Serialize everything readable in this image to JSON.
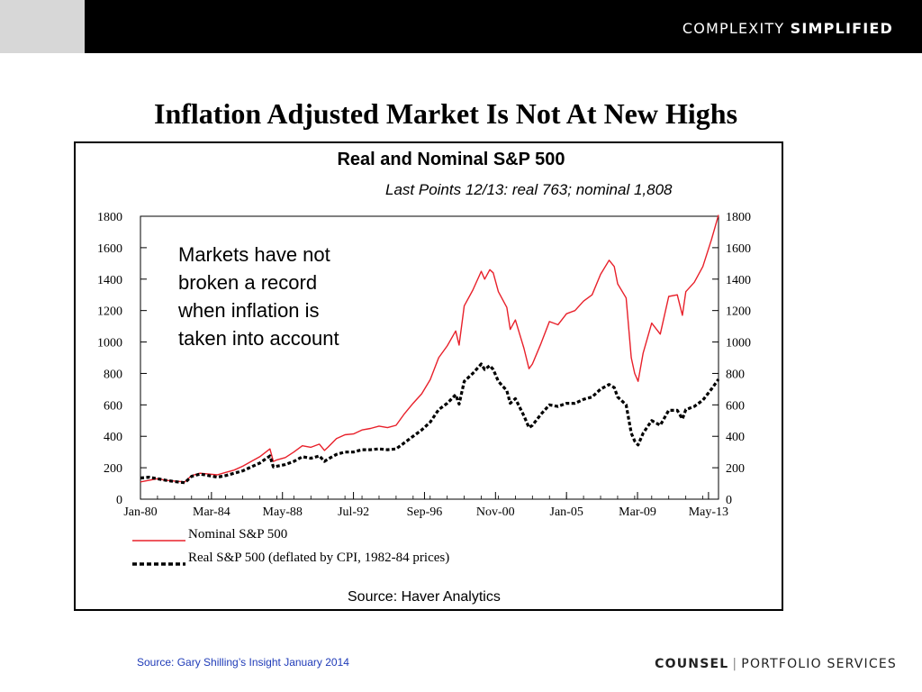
{
  "header": {
    "brand_light": "COMPLEXITY",
    "brand_bold": "SIMPLIFIED"
  },
  "slide_title": "Inflation Adjusted Market Is Not At New Highs",
  "callout": [
    "Markets have not",
    "broken a record",
    "when inflation is",
    "taken into account"
  ],
  "footer": {
    "source": "Source: Gary Shilling’s Insight January 2014",
    "brand_bold": "COUNSEL",
    "brand_separator": "|",
    "brand_light": "PORTFOLIO SERVICES"
  },
  "chart_data": {
    "type": "line",
    "title": "Real and Nominal S&P 500",
    "subtitle": "Last Points 12/13:  real  763;  nominal  1,808",
    "source": "Source:  Haver  Analytics",
    "ylim": [
      0,
      1800
    ],
    "grid": false,
    "legend_position": "bottom",
    "y_ticks": [
      "0",
      "200",
      "400",
      "600",
      "800",
      "1000",
      "1200",
      "1400",
      "1600",
      "1800"
    ],
    "x_ticks": [
      "Jan-80",
      "Mar-84",
      "May-88",
      "Jul-92",
      "Sep-96",
      "Nov-00",
      "Jan-05",
      "Mar-09",
      "May-13"
    ],
    "colors": {
      "nominal": "#e8202a",
      "real": "#000000"
    },
    "series": [
      {
        "name": "Nominal S&P 500",
        "style": "solid",
        "x": [
          1980.0,
          1980.5,
          1981.0,
          1981.5,
          1982.0,
          1982.6,
          1983.0,
          1983.5,
          1984.0,
          1984.5,
          1985.0,
          1985.5,
          1986.0,
          1986.5,
          1987.0,
          1987.6,
          1987.8,
          1988.0,
          1988.5,
          1989.0,
          1989.5,
          1990.0,
          1990.5,
          1990.8,
          1991.0,
          1991.5,
          1992.0,
          1992.5,
          1993.0,
          1993.5,
          1994.0,
          1994.5,
          1995.0,
          1995.5,
          1996.0,
          1996.5,
          1997.0,
          1997.5,
          1998.0,
          1998.5,
          1998.7,
          1999.0,
          1999.5,
          2000.0,
          2000.2,
          2000.5,
          2000.7,
          2001.0,
          2001.5,
          2001.7,
          2002.0,
          2002.5,
          2002.8,
          2003.0,
          2003.5,
          2004.0,
          2004.5,
          2005.0,
          2005.5,
          2006.0,
          2006.5,
          2007.0,
          2007.5,
          2007.8,
          2008.0,
          2008.5,
          2008.8,
          2009.0,
          2009.2,
          2009.5,
          2010.0,
          2010.5,
          2011.0,
          2011.5,
          2011.8,
          2012.0,
          2012.5,
          2013.0,
          2013.5,
          2013.92
        ],
        "values": [
          110,
          120,
          130,
          120,
          115,
          110,
          150,
          165,
          160,
          155,
          170,
          185,
          210,
          240,
          270,
          320,
          240,
          250,
          265,
          300,
          340,
          330,
          350,
          310,
          330,
          385,
          410,
          415,
          440,
          450,
          465,
          455,
          470,
          545,
          610,
          670,
          760,
          900,
          975,
          1070,
          980,
          1230,
          1330,
          1450,
          1400,
          1460,
          1440,
          1320,
          1220,
          1080,
          1140,
          960,
          830,
          860,
          990,
          1130,
          1110,
          1180,
          1200,
          1260,
          1300,
          1430,
          1520,
          1480,
          1370,
          1280,
          900,
          800,
          750,
          930,
          1120,
          1050,
          1290,
          1300,
          1170,
          1320,
          1380,
          1480,
          1650,
          1808
        ]
      },
      {
        "name": "Real S&P 500 (deflated by CPI, 1982-84 prices)",
        "style": "dashed",
        "x": [
          1980.0,
          1980.5,
          1981.0,
          1981.5,
          1982.0,
          1982.6,
          1983.0,
          1983.5,
          1984.0,
          1984.5,
          1985.0,
          1985.5,
          1986.0,
          1986.5,
          1987.0,
          1987.6,
          1987.8,
          1988.0,
          1988.5,
          1989.0,
          1989.5,
          1990.0,
          1990.5,
          1990.8,
          1991.0,
          1991.5,
          1992.0,
          1992.5,
          1993.0,
          1993.5,
          1994.0,
          1994.5,
          1995.0,
          1995.5,
          1996.0,
          1996.5,
          1997.0,
          1997.5,
          1998.0,
          1998.5,
          1998.7,
          1999.0,
          1999.5,
          2000.0,
          2000.2,
          2000.5,
          2000.7,
          2001.0,
          2001.5,
          2001.7,
          2002.0,
          2002.5,
          2002.8,
          2003.0,
          2003.5,
          2004.0,
          2004.5,
          2005.0,
          2005.5,
          2006.0,
          2006.5,
          2007.0,
          2007.5,
          2007.8,
          2008.0,
          2008.5,
          2008.8,
          2009.0,
          2009.2,
          2009.5,
          2010.0,
          2010.5,
          2011.0,
          2011.5,
          2011.8,
          2012.0,
          2012.5,
          2013.0,
          2013.5,
          2013.92
        ],
        "values": [
          135,
          140,
          130,
          120,
          112,
          105,
          145,
          160,
          150,
          140,
          150,
          165,
          180,
          205,
          230,
          275,
          205,
          210,
          220,
          240,
          270,
          260,
          275,
          240,
          255,
          285,
          300,
          300,
          315,
          315,
          320,
          315,
          320,
          360,
          400,
          440,
          490,
          570,
          610,
          665,
          605,
          750,
          800,
          860,
          825,
          850,
          825,
          750,
          690,
          610,
          640,
          530,
          455,
          470,
          540,
          600,
          590,
          610,
          610,
          635,
          650,
          700,
          730,
          710,
          650,
          600,
          420,
          370,
          345,
          420,
          500,
          470,
          565,
          565,
          510,
          570,
          590,
          630,
          700,
          763
        ]
      }
    ]
  }
}
